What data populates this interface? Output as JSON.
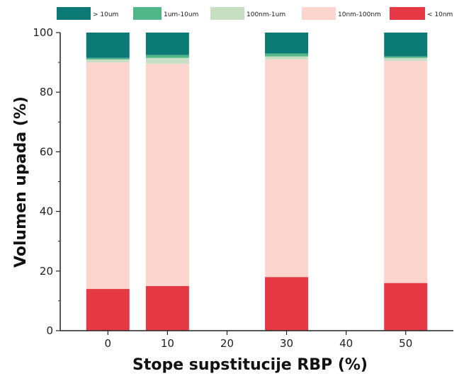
{
  "chart_data": {
    "type": "bar",
    "stacked": true,
    "title": "",
    "xlabel": "Stope supstitucije RBP (%)",
    "ylabel": "Volumen upada (%)",
    "x_ticks": [
      "0",
      "10",
      "20",
      "30",
      "40",
      "50"
    ],
    "categories": [
      "0",
      "10",
      "30",
      "50"
    ],
    "ylim": [
      0,
      100
    ],
    "y_ticks": [
      "0",
      "20",
      "40",
      "60",
      "80",
      "100"
    ],
    "legend_position": "top",
    "series": [
      {
        "name": "< 10nm",
        "color": "#e63946",
        "values": [
          14,
          15,
          18,
          16
        ]
      },
      {
        "name": "10nm-100nm",
        "color": "#fcd5ce",
        "values": [
          76,
          74.5,
          73,
          74.5
        ]
      },
      {
        "name": "100nm-1um",
        "color": "#c9dfc4",
        "values": [
          1,
          2,
          1,
          1
        ]
      },
      {
        "name": "1um-10um",
        "color": "#52b788",
        "values": [
          0.5,
          1,
          1,
          0.5
        ]
      },
      {
        "name": "> 10um",
        "color": "#0b7a75",
        "values": [
          8.5,
          7.5,
          7,
          8
        ]
      }
    ],
    "legend_order": [
      "> 10um",
      "1um-10um",
      "100nm-1um",
      "10nm-100nm",
      "< 10nm"
    ]
  }
}
